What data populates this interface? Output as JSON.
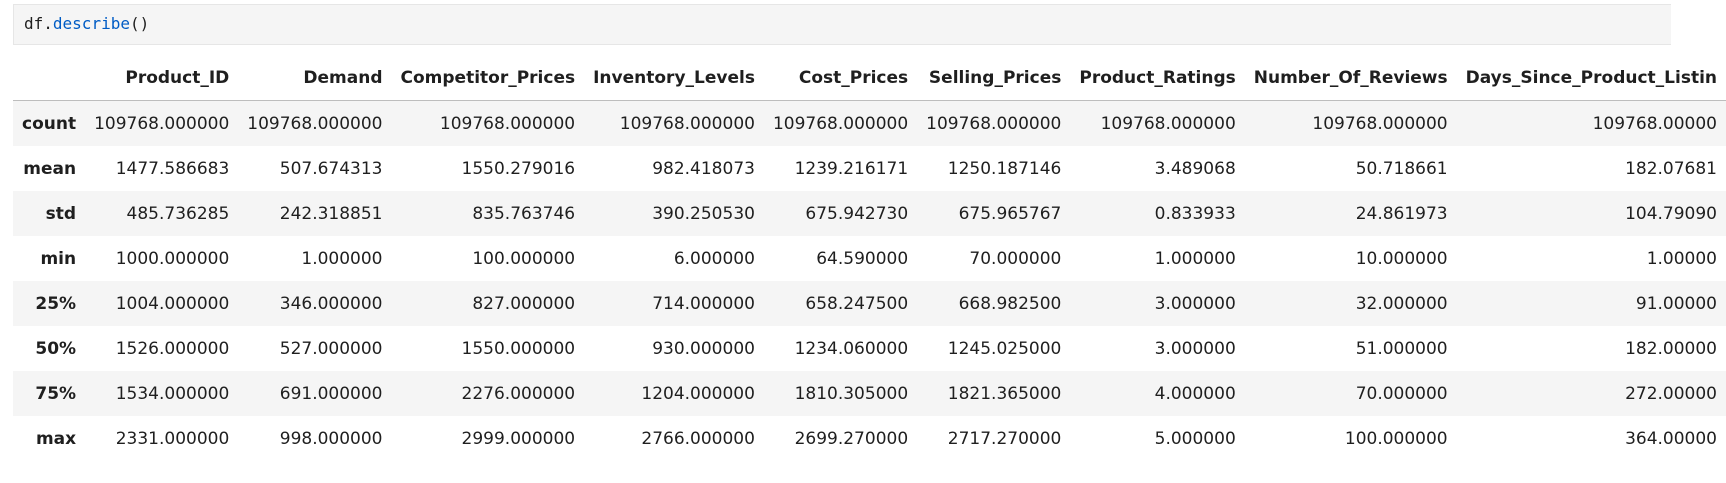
{
  "code_cell": {
    "object": "df",
    "dot": ".",
    "method": "describe",
    "call": "()"
  },
  "output_table": {
    "columns": [
      "Product_ID",
      "Demand",
      "Competitor_Prices",
      "Inventory_Levels",
      "Cost_Prices",
      "Selling_Prices",
      "Product_Ratings",
      "Number_Of_Reviews",
      "Days_Since_Product_Listin"
    ],
    "rows": [
      {
        "stat": "count",
        "values": [
          "109768.000000",
          "109768.000000",
          "109768.000000",
          "109768.000000",
          "109768.000000",
          "109768.000000",
          "109768.000000",
          "109768.000000",
          "109768.00000"
        ]
      },
      {
        "stat": "mean",
        "values": [
          "1477.586683",
          "507.674313",
          "1550.279016",
          "982.418073",
          "1239.216171",
          "1250.187146",
          "3.489068",
          "50.718661",
          "182.07681"
        ]
      },
      {
        "stat": "std",
        "values": [
          "485.736285",
          "242.318851",
          "835.763746",
          "390.250530",
          "675.942730",
          "675.965767",
          "0.833933",
          "24.861973",
          "104.79090"
        ]
      },
      {
        "stat": "min",
        "values": [
          "1000.000000",
          "1.000000",
          "100.000000",
          "6.000000",
          "64.590000",
          "70.000000",
          "1.000000",
          "10.000000",
          "1.00000"
        ]
      },
      {
        "stat": "25%",
        "values": [
          "1004.000000",
          "346.000000",
          "827.000000",
          "714.000000",
          "658.247500",
          "668.982500",
          "3.000000",
          "32.000000",
          "91.00000"
        ]
      },
      {
        "stat": "50%",
        "values": [
          "1526.000000",
          "527.000000",
          "1550.000000",
          "930.000000",
          "1234.060000",
          "1245.025000",
          "3.000000",
          "51.000000",
          "182.00000"
        ]
      },
      {
        "stat": "75%",
        "values": [
          "1534.000000",
          "691.000000",
          "2276.000000",
          "1204.000000",
          "1810.305000",
          "1821.365000",
          "4.000000",
          "70.000000",
          "272.00000"
        ]
      },
      {
        "stat": "max",
        "values": [
          "2331.000000",
          "998.000000",
          "2999.000000",
          "2766.000000",
          "2699.270000",
          "2717.270000",
          "5.000000",
          "100.000000",
          "364.00000"
        ]
      }
    ]
  },
  "colors": {
    "code_background": "#f5f5f5",
    "method_color": "#005cc5",
    "row_stripe": "#f5f5f5"
  }
}
